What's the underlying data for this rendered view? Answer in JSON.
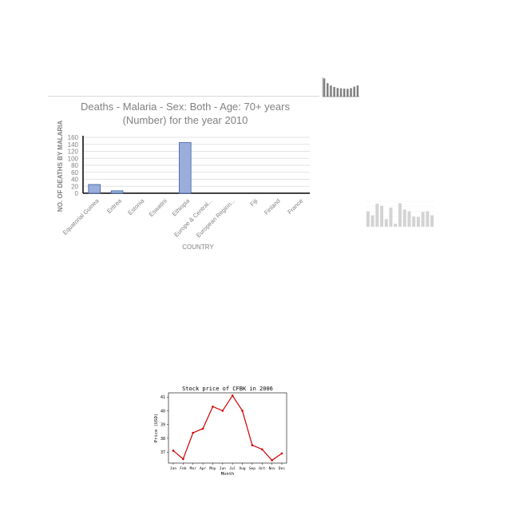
{
  "chart_data": [
    {
      "type": "bar",
      "title": "Deaths - Malaria - Sex: Both - Age: 70+ years (Number) for the year 2010",
      "title_lines": [
        "Deaths - Malaria - Sex: Both - Age: 70+ years",
        "(Number)  for the year 2010"
      ],
      "xlabel": "COUNTRY",
      "ylabel": "NO. OF DEATHS BY MALARIA",
      "categories": [
        "Equatorial Guinea",
        "Eritrea",
        "Estonia",
        "Eswatini",
        "Ethiopia",
        "Europe & Central...",
        "European Region...",
        "Fiji",
        "Finland",
        "France"
      ],
      "values": [
        25,
        7,
        0,
        0,
        145,
        0,
        0,
        0,
        0,
        0
      ],
      "ylim": [
        0,
        160
      ],
      "yticks": [
        0,
        20,
        40,
        60,
        80,
        100,
        120,
        140,
        160
      ],
      "grid": true,
      "colors": {
        "bar": "#9aaedc",
        "bar_edge": "#3f5fa8",
        "grid": "#d9d9d9",
        "text": "#808080"
      }
    },
    {
      "type": "bar",
      "title": "",
      "values": [
        95,
        70,
        58,
        50,
        45,
        43,
        42,
        41,
        44,
        52,
        58
      ],
      "ylim": [
        0,
        100
      ],
      "grid": false,
      "colors": {
        "bar": "#808080"
      }
    },
    {
      "type": "bar",
      "title": "",
      "values": [
        60,
        45,
        90,
        82,
        30,
        75,
        12,
        92,
        68,
        60,
        40,
        38,
        58,
        60,
        45
      ],
      "ylim": [
        0,
        100
      ],
      "grid": true,
      "colors": {
        "bar": "#d3d3d3",
        "grid": "#eeeeee"
      }
    },
    {
      "type": "line",
      "title": "Stock price of CFBK in 2006",
      "xlabel": "Month",
      "ylabel": "Price (USD)",
      "categories": [
        "Jan",
        "Feb",
        "Mar",
        "Apr",
        "May",
        "Jun",
        "Jul",
        "Aug",
        "Sep",
        "Oct",
        "Nov",
        "Dec"
      ],
      "values": [
        37.1,
        36.5,
        38.4,
        38.7,
        40.3,
        40.0,
        41.1,
        40.0,
        37.5,
        37.2,
        36.4,
        36.9
      ],
      "ylim": [
        36.2,
        41.3
      ],
      "yticks": [
        37,
        38,
        39,
        40,
        41
      ],
      "grid": false,
      "colors": {
        "line": "#cc0000"
      }
    }
  ]
}
